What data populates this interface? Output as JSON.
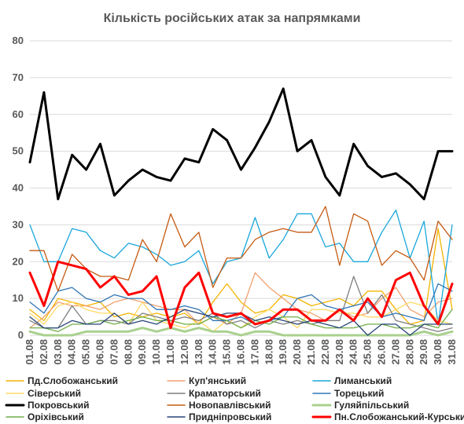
{
  "chart_data": {
    "type": "line",
    "title": "Кількість російських атак за напрямками",
    "xlabel": "",
    "ylabel": "",
    "ylim": [
      0,
      80
    ],
    "yticks": [
      0,
      10,
      20,
      30,
      40,
      50,
      60,
      70,
      80
    ],
    "grid": "horizontal",
    "legend_position": "bottom",
    "categories": [
      "01.08",
      "02.08",
      "03.08",
      "04.08",
      "05.08",
      "06.08",
      "07.08",
      "08.08",
      "09.08",
      "10.08",
      "11.08",
      "12.08",
      "13.08",
      "14.08",
      "15.08",
      "16.08",
      "17.08",
      "18.08",
      "19.08",
      "20.08",
      "21.08",
      "22.08",
      "23.08",
      "24.08",
      "25.08",
      "26.08",
      "27.08",
      "28.08",
      "29.08",
      "30.08",
      "31.08"
    ],
    "series": [
      {
        "name": "Пд.Слобожанський",
        "color": "#f4b400",
        "width": 1.3,
        "values": [
          7,
          4,
          10,
          9,
          8,
          9,
          5,
          6,
          5,
          6,
          5,
          6,
          3,
          9,
          14,
          9,
          6,
          7,
          11,
          10,
          8,
          9,
          10,
          8,
          12,
          12,
          7,
          3,
          4,
          29,
          7
        ]
      },
      {
        "name": "Куп'янський",
        "color": "#f0a070",
        "width": 1.3,
        "values": [
          2,
          5,
          9,
          8,
          8,
          7,
          9,
          10,
          9,
          8,
          7,
          7,
          3,
          5,
          3,
          6,
          17,
          13,
          10,
          7,
          6,
          4,
          7,
          5,
          6,
          10,
          13,
          7,
          5,
          9,
          10
        ]
      },
      {
        "name": "Лиманський",
        "color": "#1aa7dc",
        "width": 1.3,
        "values": [
          30,
          20,
          20,
          29,
          28,
          23,
          21,
          25,
          24,
          22,
          19,
          20,
          23,
          14,
          20,
          21,
          32,
          21,
          26,
          33,
          33,
          24,
          25,
          20,
          20,
          28,
          34,
          21,
          31,
          3,
          30
        ]
      },
      {
        "name": "Сіверський",
        "color": "#ffd966",
        "width": 1.3,
        "values": [
          6,
          3,
          8,
          9,
          7,
          6,
          6,
          3,
          9,
          4,
          3,
          2,
          4,
          1,
          4,
          2,
          5,
          7,
          5,
          2,
          7,
          7,
          6,
          6,
          5,
          5,
          7,
          9,
          8,
          4,
          3
        ]
      },
      {
        "name": "Краматорський",
        "color": "#7f7f7f",
        "width": 1.3,
        "values": [
          4,
          2,
          2,
          8,
          3,
          4,
          4,
          3,
          6,
          5,
          4,
          5,
          4,
          6,
          3,
          4,
          2,
          4,
          3,
          4,
          3,
          4,
          4,
          16,
          6,
          11,
          4,
          3,
          2,
          1,
          2
        ]
      },
      {
        "name": "Торецький",
        "color": "#2e75b6",
        "width": 1.3,
        "values": [
          9,
          6,
          12,
          13,
          10,
          9,
          11,
          10,
          10,
          7,
          7,
          8,
          7,
          4,
          4,
          5,
          3,
          4,
          5,
          10,
          11,
          8,
          7,
          8,
          9,
          5,
          6,
          5,
          4,
          14,
          12
        ]
      },
      {
        "name": "Покровський",
        "color": "#000000",
        "width": 3,
        "values": [
          47,
          66,
          37,
          49,
          45,
          52,
          38,
          42,
          45,
          43,
          42,
          48,
          47,
          56,
          53,
          45,
          51,
          58,
          67,
          50,
          53,
          43,
          38,
          52,
          46,
          43,
          44,
          41,
          37,
          50,
          50
        ]
      },
      {
        "name": "Новопавлівський",
        "color": "#c55a11",
        "width": 1.3,
        "values": [
          23,
          23,
          12,
          22,
          18,
          16,
          16,
          15,
          26,
          20,
          33,
          24,
          28,
          13,
          21,
          21,
          26,
          28,
          29,
          28,
          28,
          35,
          19,
          33,
          31,
          19,
          23,
          21,
          15,
          31,
          26
        ]
      },
      {
        "name": "Гуляйпільський",
        "color": "#a9d18e",
        "width": 3,
        "values": [
          1,
          0,
          0,
          0,
          1,
          1,
          1,
          1,
          2,
          1,
          2,
          1,
          2,
          1,
          1,
          0,
          1,
          1,
          0,
          0,
          0,
          0,
          0,
          0,
          0,
          0,
          0,
          0,
          1,
          0,
          1
        ]
      },
      {
        "name": "Оріхівський",
        "color": "#70ad47",
        "width": 1.3,
        "values": [
          2,
          2,
          1,
          3,
          3,
          4,
          3,
          4,
          5,
          4,
          4,
          3,
          3,
          5,
          4,
          2,
          4,
          3,
          5,
          5,
          3,
          2,
          2,
          2,
          3,
          3,
          2,
          2,
          3,
          2,
          7
        ]
      },
      {
        "name": "Придніпровський",
        "color": "#264478",
        "width": 1.3,
        "values": [
          5,
          2,
          2,
          4,
          3,
          3,
          6,
          3,
          4,
          3,
          5,
          7,
          6,
          5,
          6,
          6,
          4,
          5,
          4,
          3,
          4,
          3,
          2,
          4,
          0,
          3,
          3,
          0,
          3,
          3,
          3
        ]
      },
      {
        "name": "Пн.Слобожанський-Курський",
        "color": "#ff0000",
        "width": 3,
        "values": [
          17,
          8,
          20,
          19,
          18,
          13,
          16,
          11,
          12,
          16,
          2,
          13,
          17,
          6,
          5,
          6,
          3,
          4,
          7,
          7,
          4,
          4,
          7,
          4,
          10,
          5,
          15,
          17,
          8,
          3,
          14
        ]
      }
    ]
  }
}
